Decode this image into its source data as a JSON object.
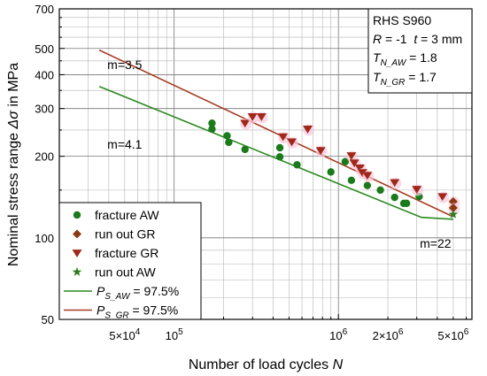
{
  "chart_data": {
    "type": "scatter",
    "xscale": "log",
    "yscale": "log",
    "xlim": [
      20000,
      6500000
    ],
    "ylim": [
      50,
      700
    ],
    "xlabel_main": "Number of load cycles ",
    "xlabel_var": "N",
    "ylabel_main": "Nominal stress range ",
    "ylabel_var": "Δσ",
    "ylabel_unit": " in MPa",
    "y_ticks": [
      {
        "v": 50,
        "label": "50"
      },
      {
        "v": 100,
        "label": "100"
      },
      {
        "v": 200,
        "label": "200"
      },
      {
        "v": 300,
        "label": "300"
      },
      {
        "v": 400,
        "label": "400"
      },
      {
        "v": 500,
        "label": "500"
      },
      {
        "v": 700,
        "label": "700"
      }
    ],
    "x_ticks": [
      {
        "v": 50000,
        "mant": "5×10",
        "exp": "4"
      },
      {
        "v": 100000,
        "mant": "10",
        "exp": "5"
      },
      {
        "v": 1000000,
        "mant": "10",
        "exp": "6"
      },
      {
        "v": 2000000,
        "mant": "2×10",
        "exp": "6"
      },
      {
        "v": 5000000,
        "mant": "5×10",
        "exp": "6"
      }
    ],
    "info_box": {
      "line1": "RHS S960",
      "line2_r": "R",
      "line2_rest": " = -1  ",
      "line2_t": "t",
      "line2_trest": " = 3 mm",
      "line3_T": "T",
      "line3_sub": "N_AW",
      "line3_val": " = 1.8",
      "line4_T": "T",
      "line4_sub": "N_GR",
      "line4_val": " = 1.7"
    },
    "annotations": [
      {
        "text": "m=3.5",
        "x": 50000,
        "y": 420
      },
      {
        "text": "m=4.1",
        "x": 50000,
        "y": 213
      },
      {
        "text": "m=22",
        "x": 3900000,
        "y": 92
      }
    ],
    "legend": {
      "placement": "bottom-left",
      "entries": [
        {
          "label": "fracture AW",
          "marker": "circle",
          "color": "#1b7a1b"
        },
        {
          "label": "run out GR",
          "marker": "diamond",
          "color": "#8b3a0f"
        },
        {
          "label": "fracture GR",
          "marker": "triangle-down",
          "color": "#a0281a"
        },
        {
          "label": "run out AW",
          "marker": "star",
          "color": "#2e7d1e"
        },
        {
          "label_P": "P",
          "label_sub": "S_AW",
          "label_val": " = 97.5%",
          "marker": "line",
          "color": "#2b8a1f"
        },
        {
          "label_P": "P",
          "label_sub": "S_GR",
          "label_val": " = 97.5%",
          "marker": "line",
          "color": "#a83c22"
        }
      ]
    },
    "series": [
      {
        "name": "fracture AW",
        "marker": "circle",
        "color": "#1b7a1b",
        "points": [
          [
            170000,
            265
          ],
          [
            170000,
            252
          ],
          [
            210000,
            238
          ],
          [
            215000,
            225
          ],
          [
            270000,
            212
          ],
          [
            440000,
            215
          ],
          [
            440000,
            199
          ],
          [
            560000,
            186
          ],
          [
            900000,
            175
          ],
          [
            1100000,
            191
          ],
          [
            1200000,
            163
          ],
          [
            1500000,
            156
          ],
          [
            1800000,
            150
          ],
          [
            2200000,
            141
          ],
          [
            2500000,
            134
          ],
          [
            2600000,
            134
          ],
          [
            3100000,
            142
          ]
        ]
      },
      {
        "name": "fracture GR",
        "marker": "triangle-down",
        "color": "#a0281a",
        "points": [
          [
            270000,
            265
          ],
          [
            300000,
            280
          ],
          [
            340000,
            280
          ],
          [
            460000,
            236
          ],
          [
            520000,
            226
          ],
          [
            650000,
            252
          ],
          [
            780000,
            210
          ],
          [
            1200000,
            201
          ],
          [
            1250000,
            189
          ],
          [
            1350000,
            181
          ],
          [
            1400000,
            174
          ],
          [
            1500000,
            170
          ],
          [
            2200000,
            160
          ],
          [
            3000000,
            151
          ],
          [
            4300000,
            142
          ]
        ]
      },
      {
        "name": "run out GR",
        "marker": "diamond",
        "color": "#8b3a0f",
        "points": [
          [
            5000000,
            136
          ],
          [
            5000000,
            129
          ]
        ]
      },
      {
        "name": "run out AW",
        "marker": "star",
        "color": "#2e7d1e",
        "points": [
          [
            5000000,
            122
          ]
        ]
      }
    ],
    "lines": [
      {
        "name": "P_S_AW = 97.5%",
        "color": "#2b8a1f",
        "points": [
          [
            35000,
            362
          ],
          [
            3200000,
            119
          ],
          [
            5000000,
            117
          ]
        ]
      },
      {
        "name": "P_S_GR = 97.5%",
        "color": "#a83c22",
        "points": [
          [
            35000,
            493
          ],
          [
            4800000,
            121
          ],
          [
            5000000,
            120
          ]
        ]
      }
    ],
    "grid": true
  }
}
